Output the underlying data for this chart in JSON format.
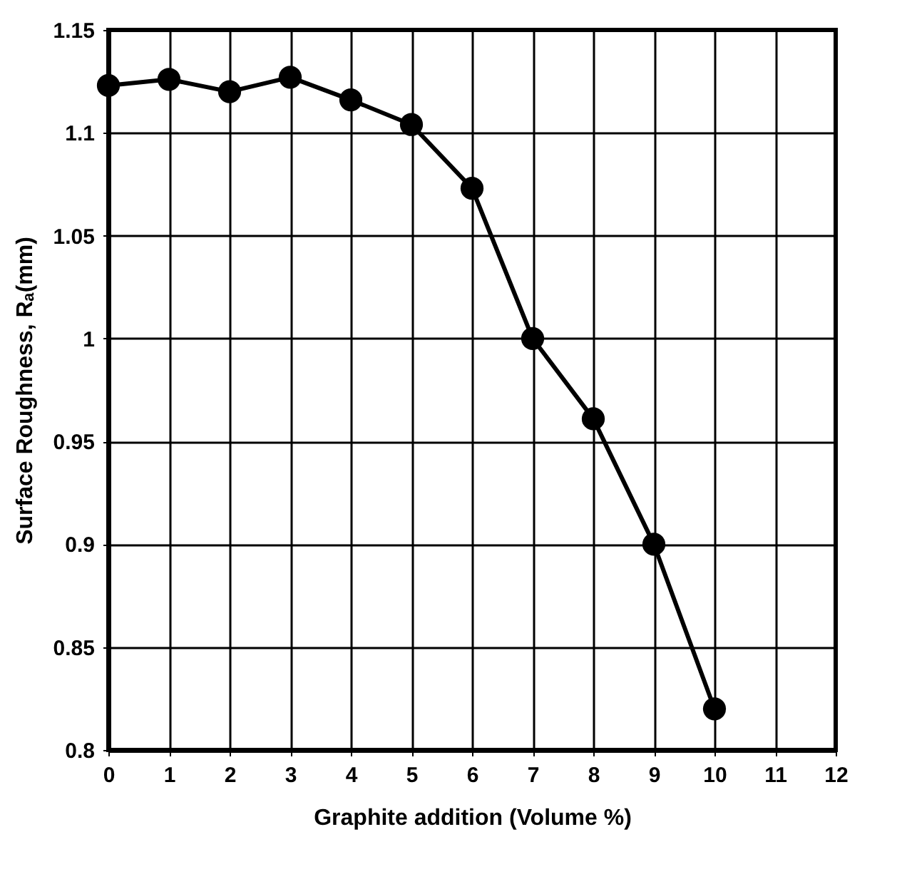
{
  "chart_data": {
    "type": "line",
    "xlabel": "Graphite addition (Volume %)",
    "ylabel": "Surface Roughness, Rₐ(mm)",
    "x": [
      0,
      1,
      2,
      3,
      4,
      5,
      6,
      7,
      8,
      9,
      10
    ],
    "series": [
      {
        "color": "#000000",
        "values": [
          1.123,
          1.126,
          1.12,
          1.127,
          1.116,
          1.104,
          1.073,
          1.0,
          0.961,
          0.9,
          0.82
        ]
      }
    ],
    "xlim": [
      0,
      12
    ],
    "xticks": [
      0,
      1,
      2,
      3,
      4,
      5,
      6,
      7,
      8,
      9,
      10,
      11,
      12
    ],
    "ylim": [
      0.8,
      1.15
    ],
    "yticks": [
      0.8,
      0.85,
      0.9,
      0.95,
      1,
      1.05,
      1.1,
      1.15
    ],
    "grid": true,
    "marker": "circle",
    "line_style": "solid"
  }
}
